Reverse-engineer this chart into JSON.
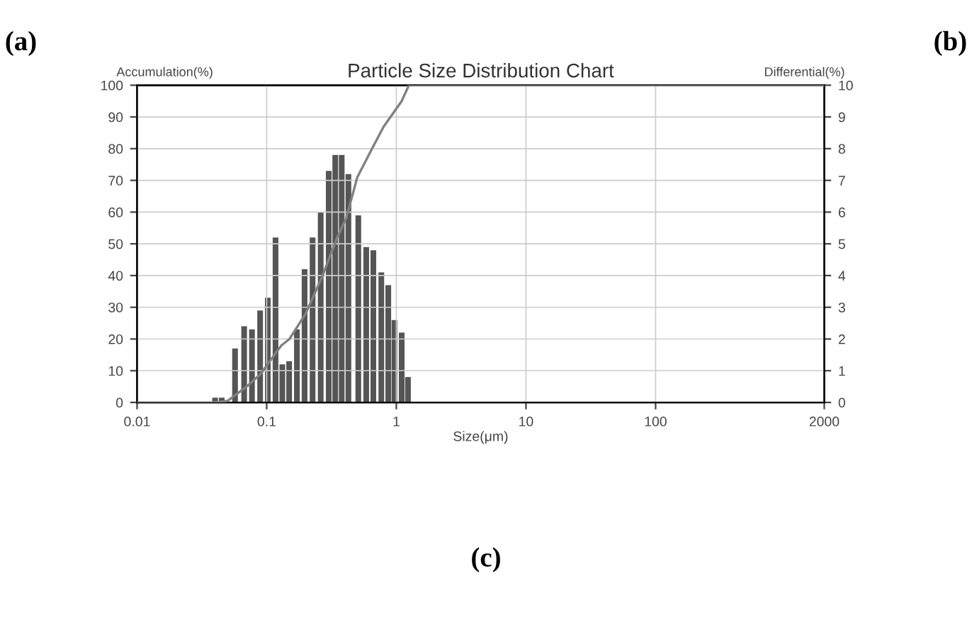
{
  "chart_data": {
    "type": "bar",
    "title": "Particle Size Distribution Chart",
    "xlabel": "Size(μm)",
    "ylabel": "Accumulation(%)",
    "y2label": "Differential(%)",
    "log": "x",
    "xlim": [
      0.01,
      2000
    ],
    "xticks": [
      0.01,
      0.1,
      1,
      10,
      100,
      2000
    ],
    "ylim": [
      0,
      100
    ],
    "yticks": [
      0,
      10,
      20,
      30,
      40,
      50,
      60,
      70,
      80,
      90,
      100
    ],
    "y2lim": [
      0,
      10
    ],
    "y2ticks": [
      0,
      1,
      2,
      3,
      4,
      5,
      6,
      7,
      8,
      9,
      10
    ],
    "grid": true,
    "series": [
      {
        "axis": "y2",
        "color": "#555555",
        "x": [
          0.04,
          0.045,
          0.057,
          0.067,
          0.077,
          0.089,
          0.102,
          0.117,
          0.132,
          0.149,
          0.171,
          0.196,
          0.226,
          0.261,
          0.301,
          0.338,
          0.379,
          0.427,
          0.509,
          0.586,
          0.665,
          0.766,
          0.867,
          0.968,
          1.1,
          1.23
        ],
        "values": [
          0.15,
          0.15,
          1.7,
          2.4,
          2.3,
          2.9,
          3.3,
          5.2,
          1.2,
          1.3,
          2.3,
          4.2,
          5.2,
          6.0,
          7.3,
          7.8,
          7.8,
          7.2,
          5.9,
          4.9,
          4.8,
          4.1,
          3.7,
          2.6,
          2.2,
          0.8
        ]
      },
      {
        "type": "line",
        "axis": "y",
        "color": "#808080",
        "x": [
          0.01,
          0.04,
          0.05,
          0.07,
          0.09,
          0.11,
          0.13,
          0.15,
          0.2,
          0.27,
          0.35,
          0.41,
          0.5,
          0.65,
          0.8,
          1.1,
          1.25,
          2000
        ],
        "values": [
          0,
          0,
          0.5,
          5,
          9,
          14,
          18,
          20,
          28,
          40,
          52,
          58,
          71,
          80,
          87,
          95,
          100,
          100
        ]
      }
    ],
    "annotations": [
      "(a)",
      "(b)",
      "(c)"
    ]
  }
}
